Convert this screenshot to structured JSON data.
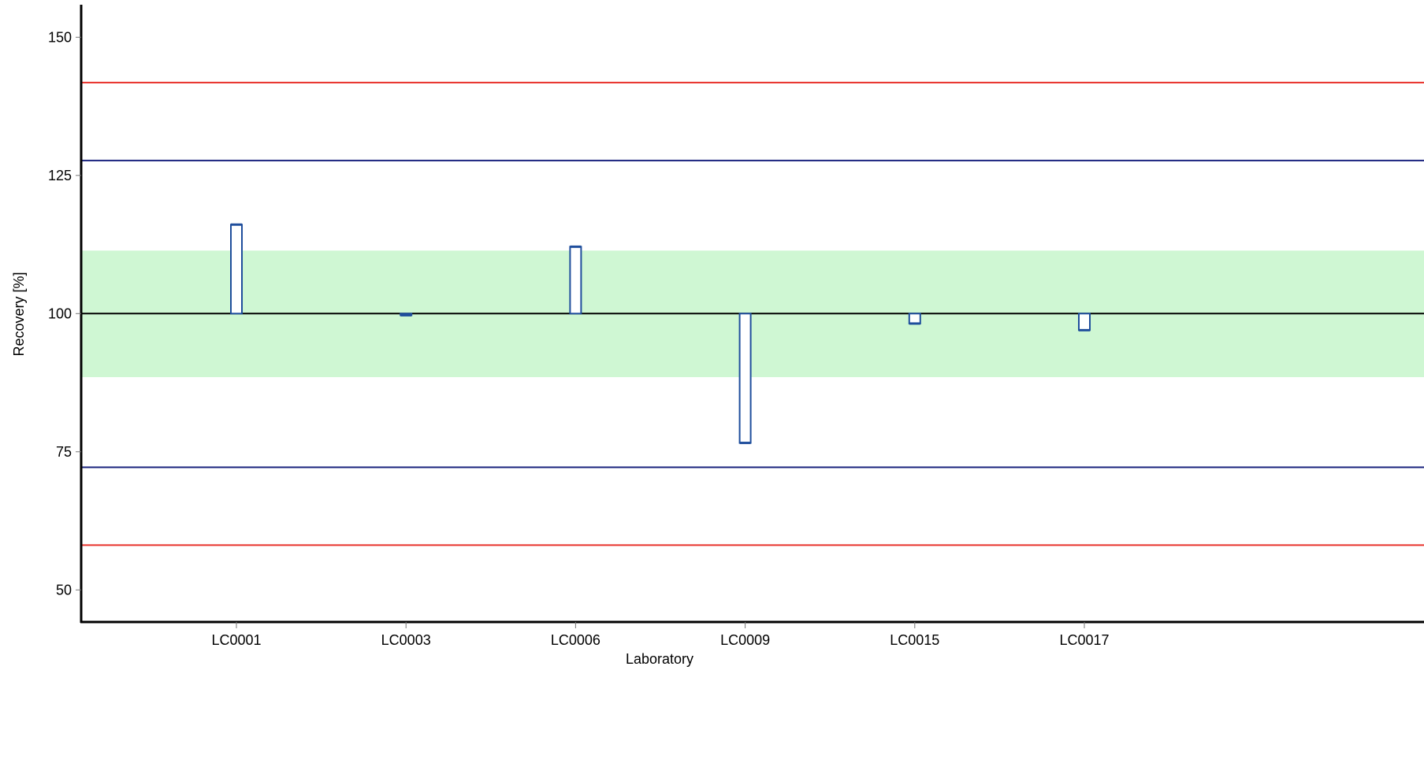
{
  "chart_data": {
    "type": "bar",
    "title": "",
    "xlabel": "Laboratory",
    "ylabel": "Recovery [%]",
    "ylim": [
      44.2,
      155.6
    ],
    "yticks": [
      50,
      75,
      100,
      125,
      150
    ],
    "grid": false,
    "baseline": 100,
    "categories": [
      "LC0001",
      "LC0003",
      "LC0006",
      "LC0009",
      "LC0015",
      "LC0017"
    ],
    "values": [
      116.1,
      99.7,
      112.1,
      76.6,
      98.2,
      97.0
    ],
    "reference_band": [
      88.5,
      111.4
    ],
    "reference_lines": [
      {
        "value": 141.8,
        "color": "#e8302a"
      },
      {
        "value": 127.7,
        "color": "#1a237e"
      },
      {
        "value": 100,
        "color": "#000000"
      },
      {
        "value": 72.2,
        "color": "#1a237e"
      },
      {
        "value": 58.1,
        "color": "#e8302a"
      }
    ],
    "colors": {
      "bar_edge": "#1f4e9c",
      "bar_fill": "#ffffff",
      "band": "#cff7d3",
      "axis": "#000000"
    }
  }
}
